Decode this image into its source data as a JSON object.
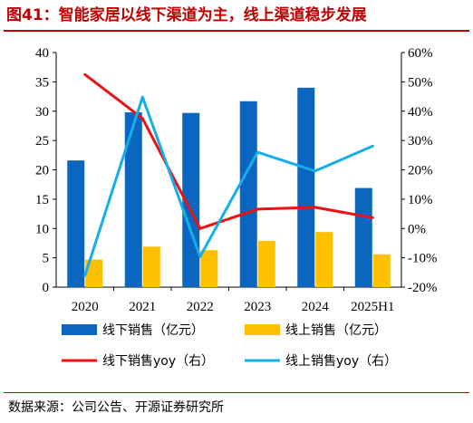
{
  "header": {
    "title": "图41：智能家居以线下渠道为主，线上渠道稳步发展"
  },
  "footer": {
    "source": "数据来源：公司公告、开源证券研究所"
  },
  "colors": {
    "title": "#c00000",
    "offline_bar": "#0a66be",
    "online_bar": "#ffc000",
    "offline_yoy_line": "#ee1111",
    "online_yoy_line": "#15aee9"
  },
  "chart_data": {
    "type": "bar",
    "categories": [
      "2020",
      "2021",
      "2022",
      "2023",
      "2024",
      "2025H1"
    ],
    "y_left": {
      "ticks": [
        "0",
        "5",
        "10",
        "15",
        "20",
        "25",
        "30",
        "35",
        "40"
      ],
      "ylim": [
        0,
        40
      ]
    },
    "y_right": {
      "ticks": [
        "-20%",
        "-10%",
        "0%",
        "10%",
        "20%",
        "30%",
        "40%",
        "50%",
        "60%"
      ],
      "ylim": [
        -20,
        60
      ],
      "unit": "%"
    },
    "series": [
      {
        "name": "线下销售（亿元）",
        "type": "bar",
        "axis": "left",
        "color": "#0a66be",
        "values": [
          21.6,
          29.8,
          29.7,
          31.7,
          34.0,
          16.9
        ]
      },
      {
        "name": "线上销售（亿元）",
        "type": "bar",
        "axis": "left",
        "color": "#ffc000",
        "values": [
          4.7,
          6.9,
          6.3,
          7.9,
          9.4,
          5.6
        ]
      },
      {
        "name": "线下销售yoy（右）",
        "type": "line",
        "axis": "right",
        "color": "#ee1111",
        "values": [
          52.5,
          37.5,
          0.0,
          6.6,
          7.2,
          3.7
        ]
      },
      {
        "name": "线上销售yoy（右）",
        "type": "line",
        "axis": "right",
        "color": "#15aee9",
        "values": [
          -16.0,
          44.8,
          -9.6,
          26.0,
          19.6,
          28.1
        ]
      }
    ],
    "grid": false,
    "legend_position": "bottom"
  }
}
